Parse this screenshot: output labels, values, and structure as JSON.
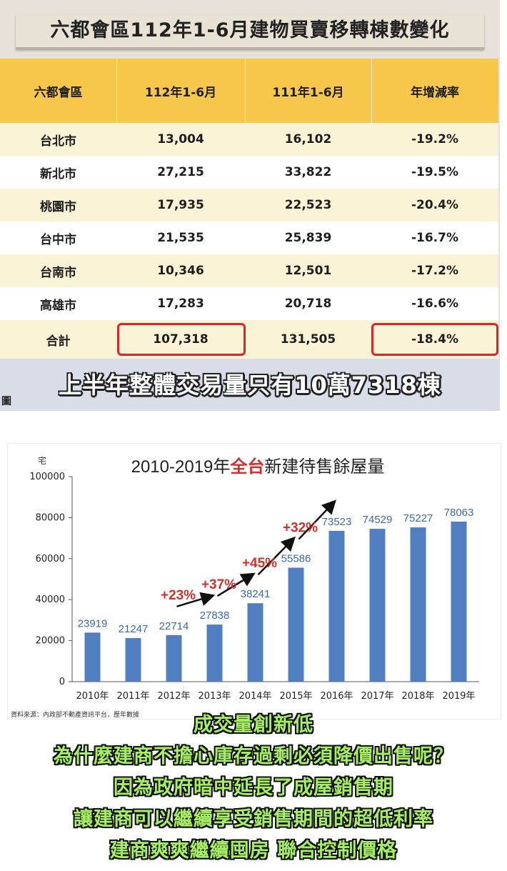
{
  "top_table": {
    "title": "六都會區112年1-6月建物買賣移轉棟數變化",
    "headers": [
      "六都會區",
      "112年1-6月",
      "111年1-6月",
      "年增減率"
    ],
    "rows": [
      [
        "台北市",
        "13,004",
        "16,102",
        "-19.2%"
      ],
      [
        "新北市",
        "27,215",
        "33,822",
        "-19.5%"
      ],
      [
        "桃園市",
        "17,935",
        "22,523",
        "-20.4%"
      ],
      [
        "台中市",
        "21,535",
        "25,839",
        "-16.7%"
      ],
      [
        "台南市",
        "10,346",
        "12,501",
        "-17.2%"
      ],
      [
        "高雄市",
        "17,283",
        "20,718",
        "-16.6%"
      ]
    ],
    "total": [
      "合計",
      "107,318",
      "131,505",
      "-18.4%"
    ],
    "banner": "上半年整體交易量只有10萬7318棟",
    "banner_stub": "圖",
    "colors": {
      "header": "#f6c74a",
      "row_odd": "#fbf3d6",
      "row_even": "#ffffff",
      "highlight_border": "#d9262a"
    }
  },
  "chart_data": {
    "type": "bar",
    "title_parts": [
      "2010-2019年",
      "全台",
      "新建待售餘屋量"
    ],
    "ylabel": "宅",
    "categories": [
      "2010年",
      "2011年",
      "2012年",
      "2013年",
      "2014年",
      "2015年",
      "2016年",
      "2017年",
      "2018年",
      "2019年"
    ],
    "values": [
      23919,
      21247,
      22714,
      27838,
      38241,
      55586,
      73523,
      74529,
      75227,
      78063
    ],
    "ylim": [
      0,
      100000
    ],
    "yticks": [
      0,
      20000,
      40000,
      60000,
      80000,
      100000
    ],
    "grid": false,
    "bar_color": "#4f7fc0",
    "label_color": "#3d6aa6",
    "annotations": [
      "+23%",
      "+37%",
      "+45%",
      "+32%"
    ],
    "annotation_color": "#d0312d",
    "source": "資料來源：內政部不動產資訊平台，歷年數據"
  },
  "caption": {
    "lines": [
      "成交量創新低",
      "為什麼建商不擔心庫存過剩必須降價出售呢？",
      "因為政府暗中延長了成屋銷售期",
      "讓建商可以繼續享受銷售期間的超低利率",
      "建商爽爽繼續囤房 聯合控制價格"
    ]
  }
}
